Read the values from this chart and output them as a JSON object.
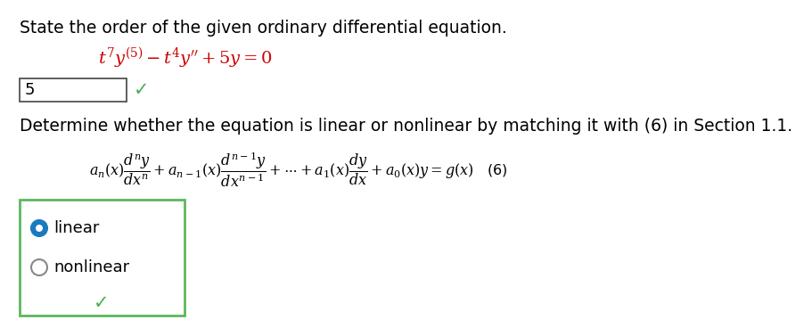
{
  "background_color": "#ffffff",
  "title_text": "State the order of the given ordinary differential equation.",
  "title_fontsize": 13.5,
  "equation_color": "#cc0000",
  "answer_box_value": "5",
  "checkmark_color": "#4caf50",
  "section2_text": "Determine whether the equation is linear or nonlinear by matching it with (6) in Section 1.1.",
  "section2_fontsize": 13.5,
  "radio_selected_color": "#1a7abf",
  "radio_unselected_color": "#ffffff",
  "box_border_color": "#5cb85c",
  "text_color": "#000000",
  "eq_fontsize": 14
}
